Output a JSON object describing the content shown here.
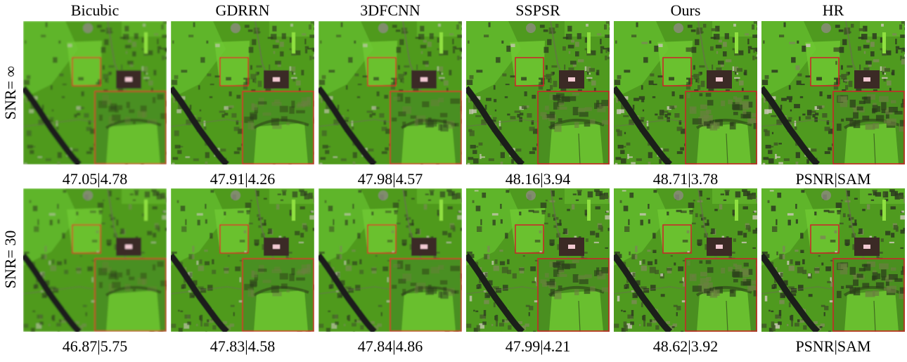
{
  "figure": {
    "columns": [
      {
        "label": "Bicubic",
        "level": "bicubic"
      },
      {
        "label": "GDRRN",
        "level": "gdrrn"
      },
      {
        "label": "3DFCNN",
        "level": "3dfcnn"
      },
      {
        "label": "SSPSR",
        "level": "sspsr"
      },
      {
        "label": "Ours",
        "level": "ours"
      },
      {
        "label": "HR",
        "level": "hr"
      }
    ],
    "rows": [
      {
        "label": "SNR= ∞",
        "metrics": [
          "47.05|4.78",
          "47.91|4.26",
          "47.98|4.57",
          "48.16|3.94",
          "48.71|3.78",
          "PSNR|SAM"
        ]
      },
      {
        "label": "SNR= 30",
        "metrics": [
          "46.87|5.75",
          "47.83|4.58",
          "47.84|4.86",
          "47.99|4.21",
          "48.62|3.92",
          "PSNR|SAM"
        ]
      }
    ],
    "colors": {
      "vegetation": "#4f9a1f",
      "field_bright": "#6fc832",
      "river": "#1b1f1a",
      "building": "#3b2a25",
      "zoom_box": "#d0202a"
    }
  }
}
